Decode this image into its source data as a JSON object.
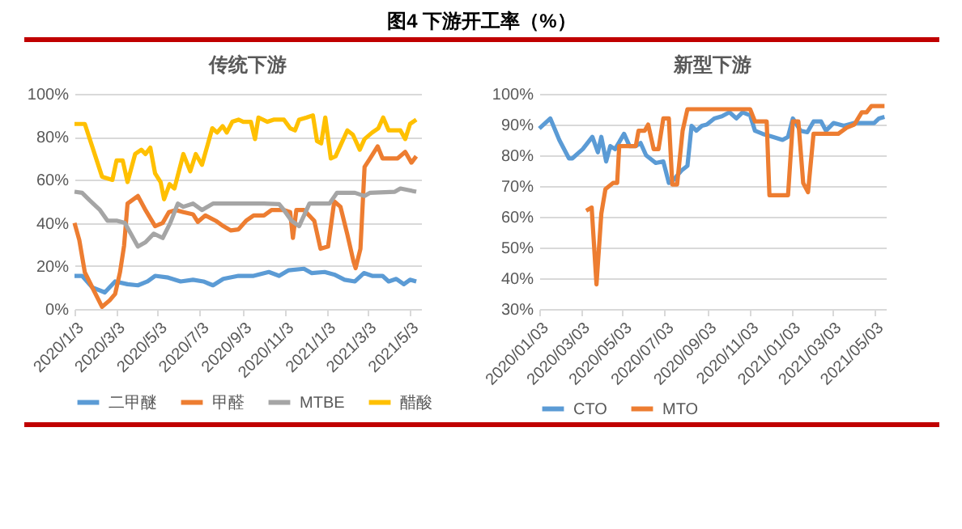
{
  "chart_data": [
    {
      "type": "line",
      "title": "传统下游",
      "annotations": [
        "图4 下游开工率（%）"
      ],
      "grid": "y",
      "legend": "bottom",
      "xlim": [
        "2020-01-03",
        "2021-05-20"
      ],
      "xticks": [
        {
          "value": "2020-01-03",
          "label": "2020/1/3"
        },
        {
          "value": "2020-03-03",
          "label": "2020/3/3"
        },
        {
          "value": "2020-05-03",
          "label": "2020/5/3"
        },
        {
          "value": "2020-07-03",
          "label": "2020/7/3"
        },
        {
          "value": "2020-09-03",
          "label": "2020/9/3"
        },
        {
          "value": "2020-11-03",
          "label": "2020/11/3"
        },
        {
          "value": "2021-01-03",
          "label": "2021/1/3"
        },
        {
          "value": "2021-03-03",
          "label": "2021/3/3"
        },
        {
          "value": "2021-05-03",
          "label": "2021/5/3"
        }
      ],
      "ylim": [
        0,
        100
      ],
      "yticks": [
        {
          "value": 0,
          "label": "0%"
        },
        {
          "value": 20,
          "label": "20%"
        },
        {
          "value": 40,
          "label": "40%"
        },
        {
          "value": 60,
          "label": "60%"
        },
        {
          "value": 80,
          "label": "80%"
        },
        {
          "value": 100,
          "label": "100%"
        }
      ],
      "series": [
        {
          "name": "二甲醚",
          "color": "#5b9bd5",
          "x": [
            "2020-01-03",
            "2020-01-14",
            "2020-01-29",
            "2020-02-16",
            "2020-03-02",
            "2020-03-20",
            "2020-04-04",
            "2020-04-18",
            "2020-04-29",
            "2020-05-18",
            "2020-06-05",
            "2020-06-23",
            "2020-07-08",
            "2020-07-22",
            "2020-08-06",
            "2020-08-28",
            "2020-09-19",
            "2020-10-11",
            "2020-10-26",
            "2020-11-09",
            "2020-12-01",
            "2020-12-12",
            "2020-12-31",
            "2021-01-14",
            "2021-01-29",
            "2021-02-13",
            "2021-02-26",
            "2021-03-10",
            "2021-03-25",
            "2021-04-03",
            "2021-04-14",
            "2021-04-25",
            "2021-05-04",
            "2021-05-13"
          ],
          "values": [
            15.4,
            15.4,
            10,
            7.7,
            12.8,
            11.5,
            11,
            12.8,
            15.4,
            14.6,
            12.8,
            13.6,
            12.8,
            11,
            14,
            15.4,
            15.4,
            17.2,
            15.4,
            18,
            18.7,
            16.7,
            17.2,
            16,
            13.6,
            12.8,
            16.7,
            15.4,
            15.4,
            12.8,
            14,
            11.5,
            13.6,
            12.8
          ]
        },
        {
          "name": "甲醛",
          "color": "#ed7d31",
          "x": [
            "2020-01-03",
            "2020-01-10",
            "2020-01-18",
            "2020-02-01",
            "2020-02-12",
            "2020-02-23",
            "2020-03-02",
            "2020-03-09",
            "2020-03-15",
            "2020-03-20",
            "2020-04-04",
            "2020-04-15",
            "2020-04-29",
            "2020-05-10",
            "2020-05-19",
            "2020-05-29",
            "2020-06-09",
            "2020-06-23",
            "2020-06-30",
            "2020-07-11",
            "2020-07-26",
            "2020-08-06",
            "2020-08-17",
            "2020-08-28",
            "2020-09-08",
            "2020-09-19",
            "2020-10-04",
            "2020-10-15",
            "2020-11-02",
            "2020-11-11",
            "2020-11-15",
            "2020-11-20",
            "2020-12-01",
            "2020-12-16",
            "2020-12-25",
            "2021-01-05",
            "2021-01-14",
            "2021-01-23",
            "2021-02-02",
            "2021-02-11",
            "2021-02-14",
            "2021-02-21",
            "2021-02-27",
            "2021-03-07",
            "2021-03-18",
            "2021-03-25",
            "2021-04-05",
            "2021-04-16",
            "2021-04-27",
            "2021-05-06",
            "2021-05-13"
          ],
          "values": [
            40,
            32,
            17,
            8,
            1,
            4,
            7,
            17,
            29.5,
            49,
            52.5,
            46,
            38.5,
            40,
            45,
            46,
            45,
            44,
            40.5,
            43.5,
            41,
            38.5,
            36.5,
            37,
            41,
            43.5,
            43.5,
            46,
            46,
            45,
            33,
            46,
            46,
            41,
            28,
            29,
            50,
            47.5,
            34.6,
            22,
            19,
            28,
            66,
            70,
            75.6,
            70,
            70,
            70,
            73,
            68,
            71
          ]
        },
        {
          "name": "MTBE",
          "color": "#a5a5a5",
          "x": [
            "2020-01-03",
            "2020-01-14",
            "2020-01-25",
            "2020-02-09",
            "2020-02-20",
            "2020-03-05",
            "2020-03-16",
            "2020-04-04",
            "2020-04-15",
            "2020-04-27",
            "2020-05-10",
            "2020-05-21",
            "2020-06-01",
            "2020-06-09",
            "2020-06-23",
            "2020-07-06",
            "2020-07-22",
            "2020-08-21",
            "2020-10-04",
            "2020-10-26",
            "2020-11-02",
            "2020-11-13",
            "2020-11-24",
            "2020-12-09",
            "2021-01-07",
            "2021-01-18",
            "2021-02-13",
            "2021-02-27",
            "2021-03-07",
            "2021-04-12",
            "2021-04-20",
            "2021-05-13"
          ],
          "values": [
            54.5,
            54,
            50.5,
            46,
            41,
            41,
            40,
            29,
            31,
            35,
            33,
            40,
            49,
            47.5,
            49,
            46,
            49,
            49,
            49,
            48.7,
            46,
            41,
            38.5,
            49,
            49,
            54,
            54,
            52.5,
            54,
            54.5,
            56,
            54.5
          ]
        },
        {
          "name": "醋酸",
          "color": "#ffc000",
          "x": [
            "2020-01-03",
            "2020-01-18",
            "2020-02-12",
            "2020-02-27",
            "2020-03-04",
            "2020-03-13",
            "2020-03-20",
            "2020-03-31",
            "2020-04-09",
            "2020-04-15",
            "2020-04-22",
            "2020-04-29",
            "2020-05-07",
            "2020-05-12",
            "2020-05-20",
            "2020-05-27",
            "2020-06-09",
            "2020-06-19",
            "2020-06-27",
            "2020-07-06",
            "2020-07-21",
            "2020-07-28",
            "2020-08-05",
            "2020-08-11",
            "2020-08-19",
            "2020-08-28",
            "2020-09-04",
            "2020-09-15",
            "2020-09-21",
            "2020-09-26",
            "2020-10-09",
            "2020-10-18",
            "2020-11-02",
            "2020-11-11",
            "2020-11-18",
            "2020-11-24",
            "2020-12-05",
            "2020-12-14",
            "2020-12-20",
            "2020-12-26",
            "2021-01-01",
            "2021-01-09",
            "2021-01-16",
            "2021-01-23",
            "2021-02-02",
            "2021-02-10",
            "2021-02-20",
            "2021-02-27",
            "2021-03-10",
            "2021-03-19",
            "2021-03-26",
            "2021-04-03",
            "2021-04-12",
            "2021-04-20",
            "2021-04-27",
            "2021-05-04",
            "2021-05-13"
          ],
          "values": [
            86,
            86,
            61.5,
            60,
            69,
            69,
            59,
            72,
            74,
            72,
            75,
            63,
            59,
            51,
            58,
            56,
            72,
            64,
            72,
            67,
            84,
            82,
            85,
            82,
            87,
            88,
            87,
            87,
            79,
            89,
            87,
            88,
            88,
            84,
            83,
            88,
            89,
            90,
            78,
            77,
            89,
            70,
            71,
            76,
            83,
            81,
            74,
            79,
            82,
            84,
            89,
            83,
            83,
            83,
            79,
            86,
            88
          ]
        }
      ]
    },
    {
      "type": "line",
      "title": "新型下游",
      "grid": "y",
      "legend": "bottom",
      "xlim": [
        "2020-01-03",
        "2021-05-20"
      ],
      "xticks": [
        {
          "value": "2020-01-03",
          "label": "2020/01/03"
        },
        {
          "value": "2020-03-03",
          "label": "2020/03/03"
        },
        {
          "value": "2020-05-03",
          "label": "2020/05/03"
        },
        {
          "value": "2020-07-03",
          "label": "2020/07/03"
        },
        {
          "value": "2020-09-03",
          "label": "2020/09/03"
        },
        {
          "value": "2020-11-03",
          "label": "2020/11/03"
        },
        {
          "value": "2021-01-03",
          "label": "2021/01/03"
        },
        {
          "value": "2021-03-03",
          "label": "2021/03/03"
        },
        {
          "value": "2021-05-03",
          "label": "2021/05/03"
        }
      ],
      "ylim": [
        30,
        100
      ],
      "yticks": [
        {
          "value": 30,
          "label": "30%"
        },
        {
          "value": 40,
          "label": "40%"
        },
        {
          "value": 50,
          "label": "50%"
        },
        {
          "value": 60,
          "label": "60%"
        },
        {
          "value": 70,
          "label": "70%"
        },
        {
          "value": 80,
          "label": "80%"
        },
        {
          "value": 90,
          "label": "90%"
        },
        {
          "value": 100,
          "label": "100%"
        }
      ],
      "series": [
        {
          "name": "CTO",
          "color": "#5b9bd5",
          "x": [
            "2020-01-03",
            "2020-01-19",
            "2020-02-01",
            "2020-02-15",
            "2020-02-20",
            "2020-03-06",
            "2020-03-20",
            "2020-03-28",
            "2020-04-02",
            "2020-04-09",
            "2020-04-15",
            "2020-04-22",
            "2020-05-05",
            "2020-05-13",
            "2020-05-22",
            "2020-05-29",
            "2020-06-06",
            "2020-06-20",
            "2020-07-01",
            "2020-07-09",
            "2020-07-16",
            "2020-07-27",
            "2020-08-05",
            "2020-08-11",
            "2020-08-18",
            "2020-08-26",
            "2020-09-02",
            "2020-09-13",
            "2020-09-24",
            "2020-10-05",
            "2020-10-15",
            "2020-10-24",
            "2020-11-04",
            "2020-11-11",
            "2020-11-22",
            "2020-12-07",
            "2020-12-21",
            "2020-12-29",
            "2021-01-05",
            "2021-01-16",
            "2021-01-26",
            "2021-02-04",
            "2021-02-15",
            "2021-02-22",
            "2021-03-05",
            "2021-03-20",
            "2021-04-04",
            "2021-04-18",
            "2021-05-03",
            "2021-05-10",
            "2021-05-18"
          ],
          "values": [
            88.7,
            92,
            85,
            79,
            79,
            82,
            86,
            81,
            86,
            78,
            83,
            82,
            87,
            83,
            83,
            84,
            80,
            77.5,
            78,
            71,
            72,
            75,
            76.6,
            89.6,
            88,
            89.6,
            90,
            92,
            92.7,
            94,
            92,
            94,
            93,
            88,
            87,
            86,
            85,
            86,
            92,
            88,
            87.5,
            91,
            91,
            88,
            90.5,
            89.6,
            90.5,
            90.5,
            90.5,
            92,
            92.5
          ]
        },
        {
          "name": "MTO",
          "color": "#ed7d31",
          "x": [
            "2020-03-11",
            "2020-03-19",
            "2020-03-26",
            "2020-04-02",
            "2020-04-08",
            "2020-04-19",
            "2020-04-25",
            "2020-04-28",
            "2020-05-22",
            "2020-05-26",
            "2020-06-04",
            "2020-06-09",
            "2020-06-17",
            "2020-06-24",
            "2020-07-01",
            "2020-07-09",
            "2020-07-14",
            "2020-07-21",
            "2020-07-29",
            "2020-08-05",
            "2020-11-04",
            "2020-11-11",
            "2020-11-28",
            "2020-12-02",
            "2020-12-29",
            "2021-01-05",
            "2021-01-13",
            "2021-01-20",
            "2021-01-27",
            "2021-02-04",
            "2021-03-12",
            "2021-03-24",
            "2021-04-04",
            "2021-04-07",
            "2021-04-15",
            "2021-04-22",
            "2021-04-29",
            "2021-05-18"
          ],
          "values": [
            62,
            63,
            38,
            61,
            69,
            71,
            71,
            83,
            83,
            88,
            88,
            90,
            82,
            82,
            92,
            92,
            70.5,
            70.5,
            88,
            95,
            95,
            91,
            91,
            67,
            67,
            91,
            91,
            71,
            68,
            87,
            87,
            89,
            90,
            91,
            94,
            94,
            96,
            96
          ]
        }
      ]
    }
  ]
}
